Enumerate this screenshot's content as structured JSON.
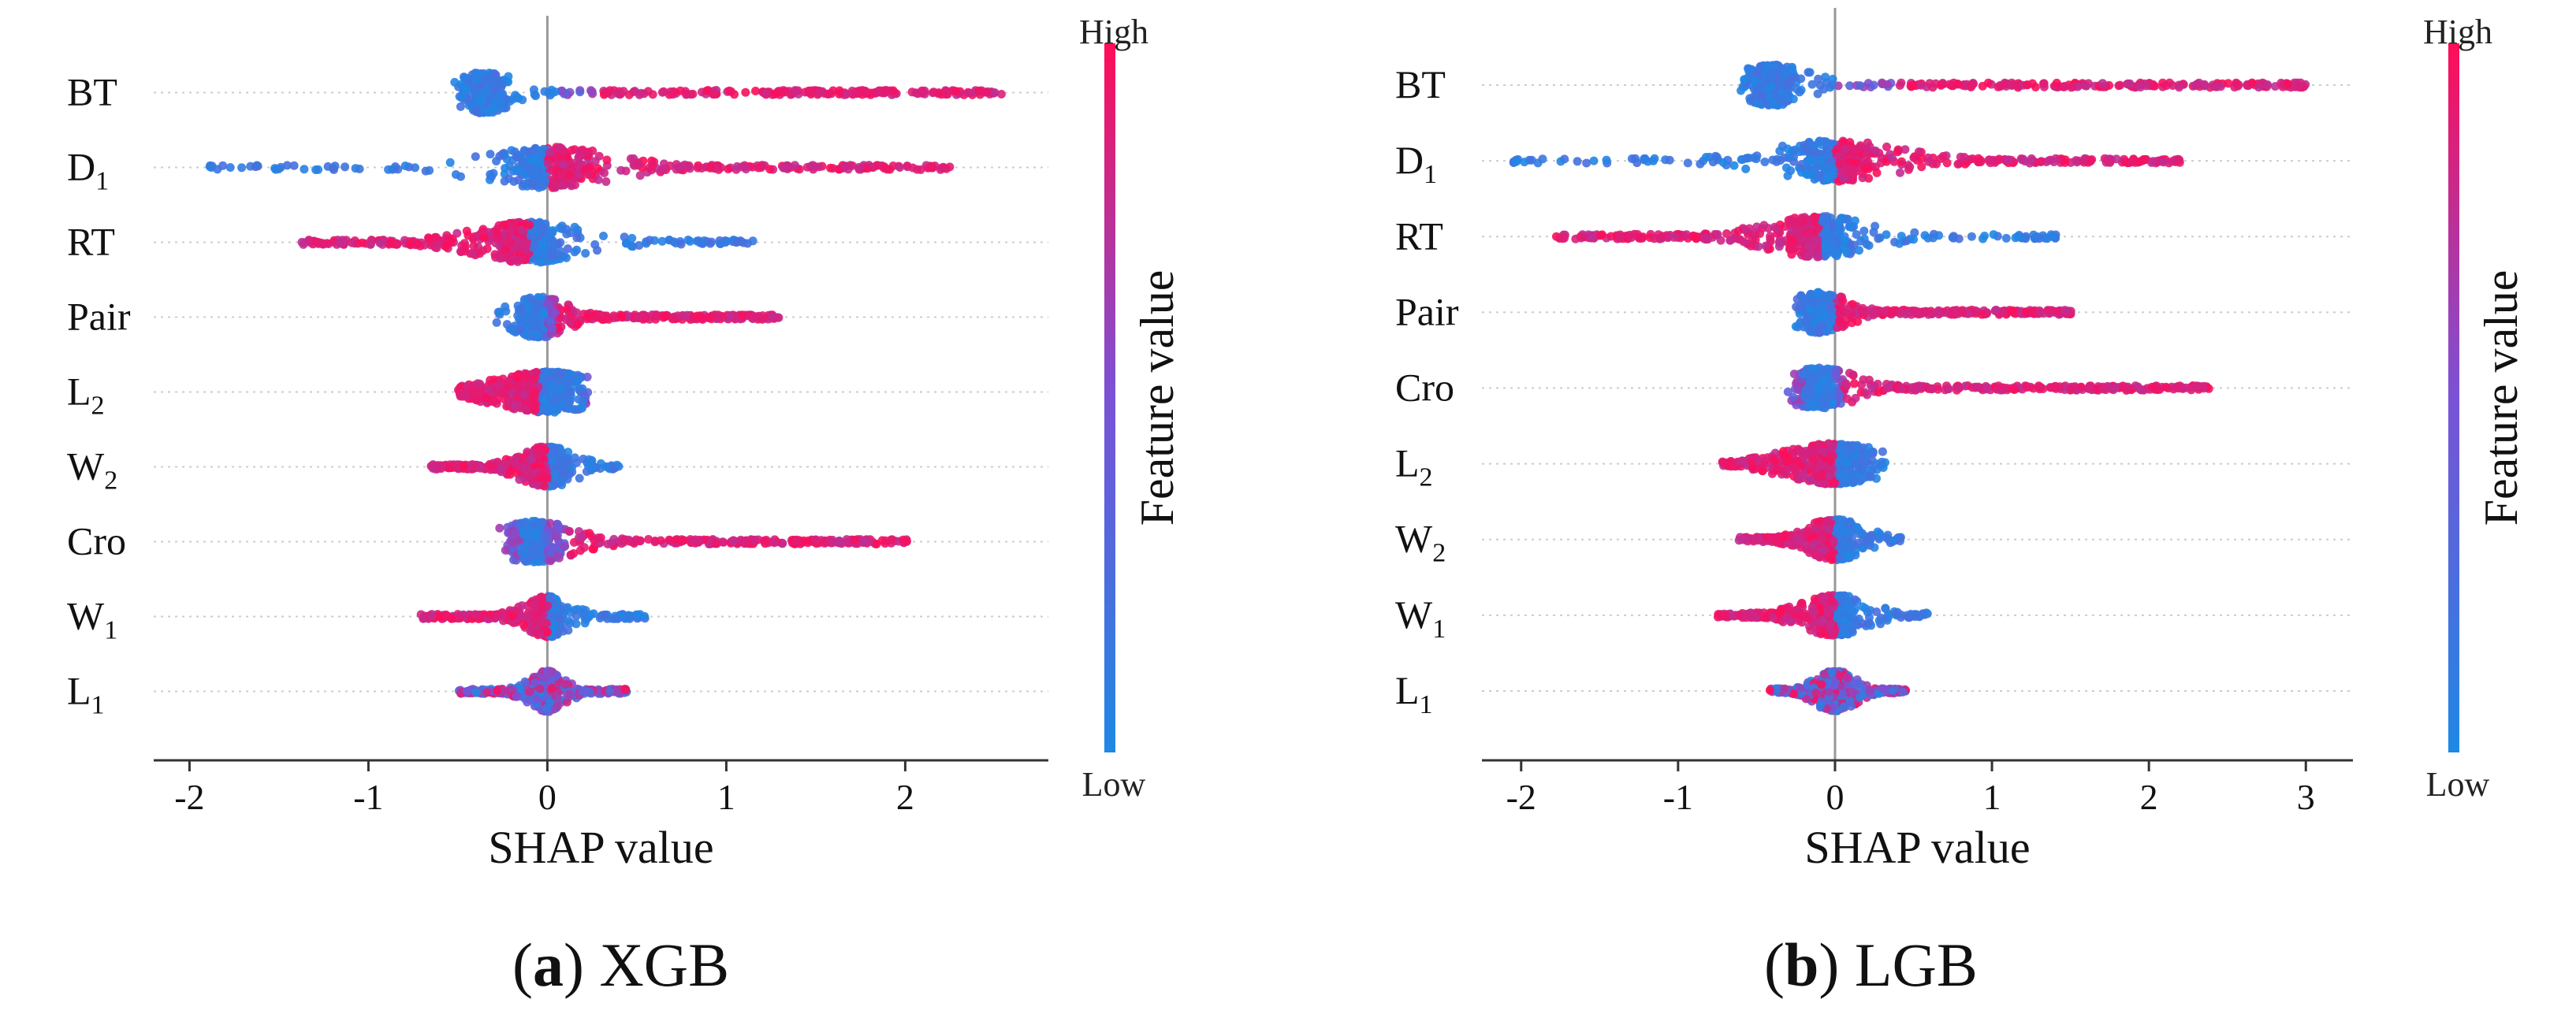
{
  "figure": {
    "colors": {
      "low": "#1e88e5",
      "high": "#ff0d57",
      "axis": "#333333",
      "grid": "#cccccc"
    }
  },
  "panels": [
    {
      "caption": {
        "letter": "a",
        "model": "XGB"
      },
      "colorbar": {
        "high_label": "High",
        "low_label": "Low",
        "title": "Feature value"
      }
    },
    {
      "caption": {
        "letter": "b",
        "model": "LGB"
      },
      "colorbar": {
        "high_label": "High",
        "low_label": "Low",
        "title": "Feature value"
      }
    }
  ],
  "chart_data": [
    {
      "type": "scatter",
      "subtype": "shap_beeswarm",
      "title": "(a) XGB",
      "xlabel": "SHAP value",
      "ylabel": "",
      "xlim": [
        -2.2,
        2.8
      ],
      "xticks": [
        -2,
        -1,
        0,
        1,
        2
      ],
      "color_scale": {
        "label": "Feature value",
        "low": "Low",
        "high": "High"
      },
      "features": [
        {
          "name": "BT",
          "base": "BT",
          "sub": "",
          "min": -0.52,
          "max": 2.55,
          "cluster_min": -0.5,
          "cluster_max": -0.2,
          "cluster_center": -0.35,
          "cluster_width": 0.35,
          "low_color_range": [
            -0.52,
            0.05
          ],
          "high_color_range": [
            0.3,
            2.55
          ]
        },
        {
          "name": "D1",
          "base": "D",
          "sub": "1",
          "min": -1.9,
          "max": 2.25,
          "cluster_min": -0.6,
          "cluster_max": 0.6,
          "cluster_center": 0.0,
          "cluster_width": 0.7,
          "low_color_range": [
            -1.9,
            0.0
          ],
          "high_color_range": [
            0.0,
            2.25
          ]
        },
        {
          "name": "RT",
          "base": "RT",
          "sub": "",
          "min": -1.38,
          "max": 1.15,
          "cluster_min": -0.6,
          "cluster_max": 0.5,
          "cluster_center": -0.1,
          "cluster_width": 0.6,
          "low_color_range": [
            -0.1,
            1.15
          ],
          "high_color_range": [
            -1.38,
            -0.1
          ]
        },
        {
          "name": "Pair",
          "base": "Pair",
          "sub": "",
          "min": -0.3,
          "max": 1.3,
          "cluster_min": -0.12,
          "cluster_max": 0.0,
          "cluster_center": -0.05,
          "cluster_width": 0.3,
          "low_color_range": [
            -0.3,
            0.0
          ],
          "high_color_range": [
            0.05,
            1.3
          ]
        },
        {
          "name": "L2",
          "base": "L",
          "sub": "2",
          "min": -0.5,
          "max": 0.2,
          "cluster_min": -0.15,
          "cluster_max": 0.15,
          "cluster_center": 0.0,
          "cluster_width": 0.55,
          "low_color_range": [
            -0.05,
            0.2
          ],
          "high_color_range": [
            -0.5,
            -0.05
          ]
        },
        {
          "name": "W2",
          "base": "W",
          "sub": "2",
          "min": -0.65,
          "max": 0.4,
          "cluster_min": -0.05,
          "cluster_max": 0.05,
          "cluster_center": 0.0,
          "cluster_width": 0.3,
          "low_color_range": [
            0.0,
            0.4
          ],
          "high_color_range": [
            -0.65,
            0.0
          ]
        },
        {
          "name": "Cro",
          "base": "Cro",
          "sub": "",
          "min": -0.15,
          "max": 2.02,
          "cluster_min": -0.15,
          "cluster_max": 0.0,
          "cluster_center": -0.07,
          "cluster_width": 0.45,
          "low_color_range": [
            -0.15,
            0.0
          ],
          "high_color_range": [
            0.12,
            2.02
          ]
        },
        {
          "name": "W1",
          "base": "W",
          "sub": "1",
          "min": -0.72,
          "max": 0.55,
          "cluster_min": -0.1,
          "cluster_max": 0.1,
          "cluster_center": 0.0,
          "cluster_width": 0.25,
          "low_color_range": [
            0.0,
            0.55
          ],
          "high_color_range": [
            -0.72,
            0.0
          ]
        },
        {
          "name": "L1",
          "base": "L",
          "sub": "1",
          "min": -0.5,
          "max": 0.45,
          "cluster_min": -0.05,
          "cluster_max": 0.05,
          "cluster_center": 0.0,
          "cluster_width": 0.2,
          "low_color_range": [
            -0.5,
            0.45
          ],
          "high_color_range": [
            -0.5,
            0.45
          ]
        }
      ]
    },
    {
      "type": "scatter",
      "subtype": "shap_beeswarm",
      "title": "(b) LGB",
      "xlabel": "SHAP value",
      "ylabel": "",
      "xlim": [
        -2.25,
        3.3
      ],
      "xticks": [
        -2,
        -1,
        0,
        1,
        2,
        3
      ],
      "color_scale": {
        "label": "Feature value",
        "low": "Low",
        "high": "High"
      },
      "features": [
        {
          "name": "BT",
          "base": "BT",
          "sub": "",
          "min": -0.6,
          "max": 3.0,
          "cluster_min": -0.6,
          "cluster_max": -0.2,
          "cluster_center": -0.4,
          "cluster_width": 0.45,
          "low_color_range": [
            -0.6,
            0.0
          ],
          "high_color_range": [
            0.4,
            3.0
          ]
        },
        {
          "name": "D1",
          "base": "D",
          "sub": "1",
          "min": -2.05,
          "max": 2.2,
          "cluster_min": -0.6,
          "cluster_max": 0.6,
          "cluster_center": 0.0,
          "cluster_width": 0.8,
          "low_color_range": [
            -2.05,
            0.0
          ],
          "high_color_range": [
            0.0,
            2.2
          ]
        },
        {
          "name": "RT",
          "base": "RT",
          "sub": "",
          "min": -1.78,
          "max": 1.42,
          "cluster_min": -0.6,
          "cluster_max": 0.5,
          "cluster_center": -0.1,
          "cluster_width": 0.65,
          "low_color_range": [
            -0.1,
            1.42
          ],
          "high_color_range": [
            -1.78,
            -0.1
          ]
        },
        {
          "name": "Pair",
          "base": "Pair",
          "sub": "",
          "min": -0.25,
          "max": 1.52,
          "cluster_min": -0.25,
          "cluster_max": 0.0,
          "cluster_center": -0.1,
          "cluster_width": 0.35,
          "low_color_range": [
            -0.25,
            0.0
          ],
          "high_color_range": [
            0.0,
            1.52
          ]
        },
        {
          "name": "Cro",
          "base": "Cro",
          "sub": "",
          "min": -0.2,
          "max": 2.42,
          "cluster_min": -0.2,
          "cluster_max": 0.0,
          "cluster_center": -0.1,
          "cluster_width": 0.45,
          "low_color_range": [
            -0.2,
            0.0
          ],
          "high_color_range": [
            0.05,
            2.42
          ]
        },
        {
          "name": "L2",
          "base": "L",
          "sub": "2",
          "min": -0.72,
          "max": 0.32,
          "cluster_min": -0.3,
          "cluster_max": 0.3,
          "cluster_center": 0.0,
          "cluster_width": 0.6,
          "low_color_range": [
            0.0,
            0.32
          ],
          "high_color_range": [
            -0.72,
            0.0
          ]
        },
        {
          "name": "W2",
          "base": "W",
          "sub": "2",
          "min": -0.62,
          "max": 0.42,
          "cluster_min": -0.05,
          "cluster_max": 0.05,
          "cluster_center": 0.0,
          "cluster_width": 0.35,
          "low_color_range": [
            0.0,
            0.42
          ],
          "high_color_range": [
            -0.62,
            0.0
          ]
        },
        {
          "name": "W1",
          "base": "W",
          "sub": "1",
          "min": -0.75,
          "max": 0.6,
          "cluster_min": -0.1,
          "cluster_max": 0.1,
          "cluster_center": 0.0,
          "cluster_width": 0.4,
          "low_color_range": [
            0.0,
            0.6
          ],
          "high_color_range": [
            -0.75,
            0.0
          ]
        },
        {
          "name": "L1",
          "base": "L",
          "sub": "1",
          "min": -0.42,
          "max": 0.45,
          "cluster_min": -0.05,
          "cluster_max": 0.05,
          "cluster_center": 0.0,
          "cluster_width": 0.25,
          "low_color_range": [
            -0.42,
            0.45
          ],
          "high_color_range": [
            -0.42,
            0.45
          ]
        }
      ]
    }
  ]
}
